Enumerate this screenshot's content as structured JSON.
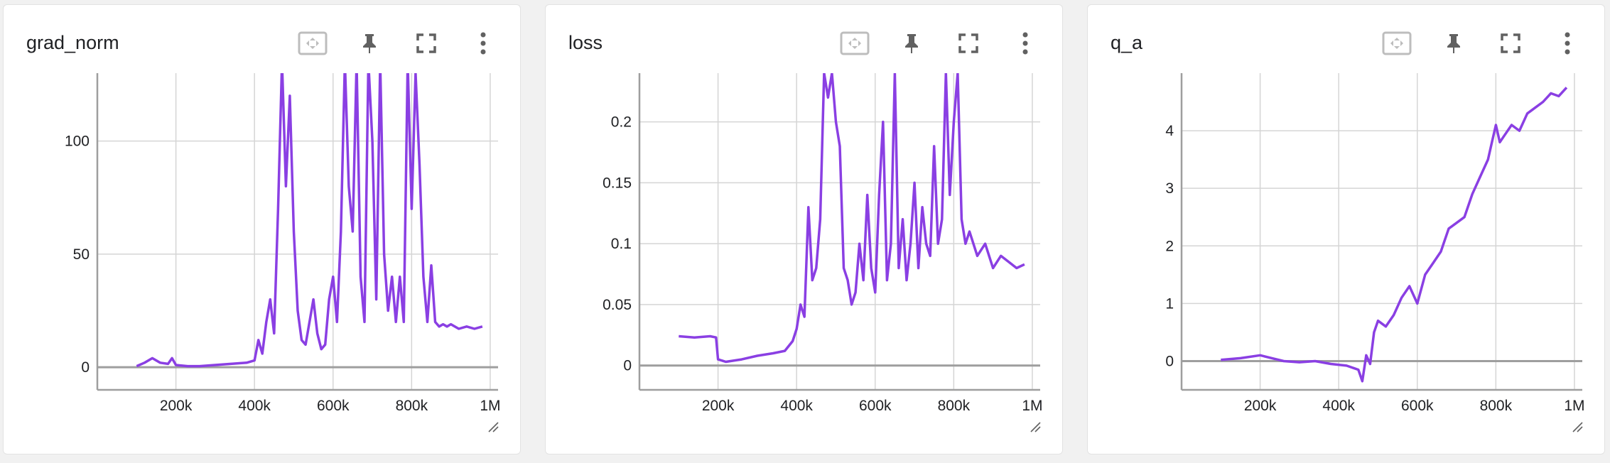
{
  "colors": {
    "series": "#8a3fe3",
    "grid": "#d5d5d5",
    "axis": "#9e9e9e",
    "text": "#202124",
    "icon": "#616161"
  },
  "toolbar": {
    "fit_icon": "fit-to-domain-icon",
    "pin_icon": "pin-icon",
    "fullscreen_icon": "fullscreen-icon",
    "more_icon": "more-vert-icon"
  },
  "cards": [
    {
      "title": "grad_norm"
    },
    {
      "title": "loss"
    },
    {
      "title": "q_a"
    }
  ],
  "chart_data": [
    {
      "type": "line",
      "title": "grad_norm",
      "xlabel": "",
      "ylabel": "",
      "xlim": [
        0,
        1020000
      ],
      "ylim": [
        -10,
        130
      ],
      "x_ticks": [
        200000,
        400000,
        600000,
        800000,
        1000000
      ],
      "x_tick_labels": [
        "200k",
        "400k",
        "600k",
        "800k",
        "1M"
      ],
      "y_ticks": [
        0,
        50,
        100
      ],
      "y_tick_labels": [
        "0",
        "50",
        "100"
      ],
      "grid": true,
      "series": [
        {
          "values": [
            [
              100000,
              0.5
            ],
            [
              120000,
              2
            ],
            [
              140000,
              4
            ],
            [
              160000,
              2
            ],
            [
              180000,
              1.5
            ],
            [
              190000,
              4
            ],
            [
              200000,
              1
            ],
            [
              230000,
              0.5
            ],
            [
              260000,
              0.5
            ],
            [
              300000,
              1
            ],
            [
              340000,
              1.5
            ],
            [
              380000,
              2
            ],
            [
              400000,
              3
            ],
            [
              410000,
              12
            ],
            [
              420000,
              6
            ],
            [
              430000,
              20
            ],
            [
              440000,
              30
            ],
            [
              450000,
              15
            ],
            [
              460000,
              70
            ],
            [
              470000,
              135
            ],
            [
              480000,
              80
            ],
            [
              490000,
              120
            ],
            [
              500000,
              60
            ],
            [
              510000,
              25
            ],
            [
              520000,
              12
            ],
            [
              530000,
              10
            ],
            [
              540000,
              20
            ],
            [
              550000,
              30
            ],
            [
              560000,
              15
            ],
            [
              570000,
              8
            ],
            [
              580000,
              10
            ],
            [
              590000,
              30
            ],
            [
              600000,
              40
            ],
            [
              610000,
              20
            ],
            [
              620000,
              60
            ],
            [
              630000,
              135
            ],
            [
              640000,
              80
            ],
            [
              650000,
              60
            ],
            [
              660000,
              135
            ],
            [
              670000,
              40
            ],
            [
              680000,
              20
            ],
            [
              690000,
              135
            ],
            [
              700000,
              100
            ],
            [
              710000,
              30
            ],
            [
              720000,
              135
            ],
            [
              730000,
              50
            ],
            [
              740000,
              25
            ],
            [
              750000,
              40
            ],
            [
              760000,
              20
            ],
            [
              770000,
              40
            ],
            [
              780000,
              20
            ],
            [
              790000,
              135
            ],
            [
              800000,
              70
            ],
            [
              810000,
              130
            ],
            [
              820000,
              90
            ],
            [
              830000,
              40
            ],
            [
              840000,
              20
            ],
            [
              850000,
              45
            ],
            [
              860000,
              20
            ],
            [
              870000,
              18
            ],
            [
              880000,
              19
            ],
            [
              890000,
              18
            ],
            [
              900000,
              19
            ],
            [
              920000,
              17
            ],
            [
              940000,
              18
            ],
            [
              960000,
              17
            ],
            [
              980000,
              18
            ]
          ]
        }
      ]
    },
    {
      "type": "line",
      "title": "loss",
      "xlabel": "",
      "ylabel": "",
      "xlim": [
        0,
        1020000
      ],
      "ylim": [
        -0.02,
        0.24
      ],
      "x_ticks": [
        200000,
        400000,
        600000,
        800000,
        1000000
      ],
      "x_tick_labels": [
        "200k",
        "400k",
        "600k",
        "800k",
        "1M"
      ],
      "y_ticks": [
        0,
        0.05,
        0.1,
        0.15,
        0.2
      ],
      "y_tick_labels": [
        "0",
        "0.05",
        "0.1",
        "0.15",
        "0.2"
      ],
      "grid": true,
      "series": [
        {
          "values": [
            [
              100000,
              0.024
            ],
            [
              140000,
              0.023
            ],
            [
              180000,
              0.024
            ],
            [
              195000,
              0.023
            ],
            [
              200000,
              0.005
            ],
            [
              220000,
              0.003
            ],
            [
              260000,
              0.005
            ],
            [
              300000,
              0.008
            ],
            [
              340000,
              0.01
            ],
            [
              370000,
              0.012
            ],
            [
              390000,
              0.02
            ],
            [
              400000,
              0.03
            ],
            [
              410000,
              0.05
            ],
            [
              420000,
              0.04
            ],
            [
              430000,
              0.13
            ],
            [
              440000,
              0.07
            ],
            [
              450000,
              0.08
            ],
            [
              460000,
              0.12
            ],
            [
              470000,
              0.24
            ],
            [
              480000,
              0.22
            ],
            [
              490000,
              0.24
            ],
            [
              500000,
              0.2
            ],
            [
              510000,
              0.18
            ],
            [
              520000,
              0.08
            ],
            [
              530000,
              0.07
            ],
            [
              540000,
              0.05
            ],
            [
              550000,
              0.06
            ],
            [
              560000,
              0.1
            ],
            [
              570000,
              0.07
            ],
            [
              580000,
              0.14
            ],
            [
              590000,
              0.08
            ],
            [
              600000,
              0.06
            ],
            [
              610000,
              0.14
            ],
            [
              620000,
              0.2
            ],
            [
              630000,
              0.07
            ],
            [
              640000,
              0.1
            ],
            [
              650000,
              0.24
            ],
            [
              660000,
              0.08
            ],
            [
              670000,
              0.12
            ],
            [
              680000,
              0.07
            ],
            [
              690000,
              0.1
            ],
            [
              700000,
              0.15
            ],
            [
              710000,
              0.08
            ],
            [
              720000,
              0.13
            ],
            [
              730000,
              0.1
            ],
            [
              740000,
              0.09
            ],
            [
              750000,
              0.18
            ],
            [
              760000,
              0.1
            ],
            [
              770000,
              0.12
            ],
            [
              780000,
              0.24
            ],
            [
              790000,
              0.14
            ],
            [
              800000,
              0.2
            ],
            [
              810000,
              0.24
            ],
            [
              820000,
              0.12
            ],
            [
              830000,
              0.1
            ],
            [
              840000,
              0.11
            ],
            [
              860000,
              0.09
            ],
            [
              880000,
              0.1
            ],
            [
              900000,
              0.08
            ],
            [
              920000,
              0.09
            ],
            [
              940000,
              0.085
            ],
            [
              960000,
              0.08
            ],
            [
              980000,
              0.083
            ]
          ]
        }
      ]
    },
    {
      "type": "line",
      "title": "q_a",
      "xlabel": "",
      "ylabel": "",
      "xlim": [
        0,
        1020000
      ],
      "ylim": [
        -0.5,
        5
      ],
      "x_ticks": [
        200000,
        400000,
        600000,
        800000,
        1000000
      ],
      "x_tick_labels": [
        "200k",
        "400k",
        "600k",
        "800k",
        "1M"
      ],
      "y_ticks": [
        0,
        1,
        2,
        3,
        4
      ],
      "y_tick_labels": [
        "0",
        "1",
        "2",
        "3",
        "4"
      ],
      "grid": true,
      "series": [
        {
          "values": [
            [
              100000,
              0.02
            ],
            [
              150000,
              0.05
            ],
            [
              200000,
              0.1
            ],
            [
              230000,
              0.05
            ],
            [
              260000,
              0.0
            ],
            [
              300000,
              -0.02
            ],
            [
              340000,
              0.0
            ],
            [
              380000,
              -0.05
            ],
            [
              420000,
              -0.08
            ],
            [
              450000,
              -0.15
            ],
            [
              460000,
              -0.35
            ],
            [
              470000,
              0.1
            ],
            [
              480000,
              -0.05
            ],
            [
              490000,
              0.5
            ],
            [
              500000,
              0.7
            ],
            [
              520000,
              0.6
            ],
            [
              540000,
              0.8
            ],
            [
              560000,
              1.1
            ],
            [
              580000,
              1.3
            ],
            [
              600000,
              1.0
            ],
            [
              620000,
              1.5
            ],
            [
              640000,
              1.7
            ],
            [
              660000,
              1.9
            ],
            [
              680000,
              2.3
            ],
            [
              700000,
              2.4
            ],
            [
              720000,
              2.5
            ],
            [
              740000,
              2.9
            ],
            [
              760000,
              3.2
            ],
            [
              780000,
              3.5
            ],
            [
              790000,
              3.8
            ],
            [
              800000,
              4.1
            ],
            [
              810000,
              3.8
            ],
            [
              820000,
              3.9
            ],
            [
              840000,
              4.1
            ],
            [
              860000,
              4.0
            ],
            [
              880000,
              4.3
            ],
            [
              900000,
              4.4
            ],
            [
              920000,
              4.5
            ],
            [
              940000,
              4.65
            ],
            [
              960000,
              4.6
            ],
            [
              980000,
              4.75
            ]
          ]
        }
      ]
    }
  ]
}
